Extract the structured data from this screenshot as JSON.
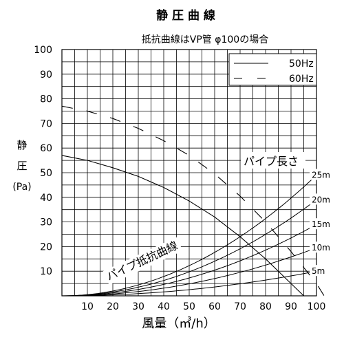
{
  "chart_data": {
    "type": "line",
    "title": "静 圧 曲 線",
    "subtitle": "抵抗曲線はVP管 φ100の場合",
    "xlabel": "風量（㎥/h）",
    "ylabel_lines": [
      "静",
      "圧",
      "(Pa)"
    ],
    "xlim": [
      0,
      100
    ],
    "ylim": [
      0,
      100
    ],
    "x_ticks": [
      10,
      20,
      30,
      40,
      50,
      60,
      70,
      80,
      90,
      100
    ],
    "y_ticks": [
      10,
      20,
      30,
      40,
      50,
      60,
      70,
      80,
      90,
      100
    ],
    "grid": true,
    "legend_position": "top-right",
    "series": [
      {
        "name": "50Hz",
        "style": "solid",
        "x": [
          0,
          10,
          20,
          30,
          40,
          50,
          60,
          70,
          80,
          90,
          95
        ],
        "y": [
          57,
          55,
          52,
          48.5,
          44,
          38.5,
          32,
          24,
          15,
          5,
          0
        ]
      },
      {
        "name": "60Hz",
        "style": "dashed",
        "x": [
          0,
          10,
          20,
          30,
          40,
          50,
          60,
          70,
          80,
          90,
          100,
          103
        ],
        "y": [
          77,
          75,
          72,
          68,
          63,
          57,
          49.5,
          40.5,
          30,
          18,
          5,
          0
        ]
      }
    ],
    "resistance_group_label": "パイプ抵抗曲線",
    "pipe_length_label": "パイプ長さ",
    "resistance_curves": [
      {
        "label": "25m",
        "end_y": 49
      },
      {
        "label": "20m",
        "end_y": 39
      },
      {
        "label": "15m",
        "end_y": 29
      },
      {
        "label": "10m",
        "end_y": 19.5
      },
      {
        "label": "5m",
        "end_y": 10
      }
    ]
  }
}
